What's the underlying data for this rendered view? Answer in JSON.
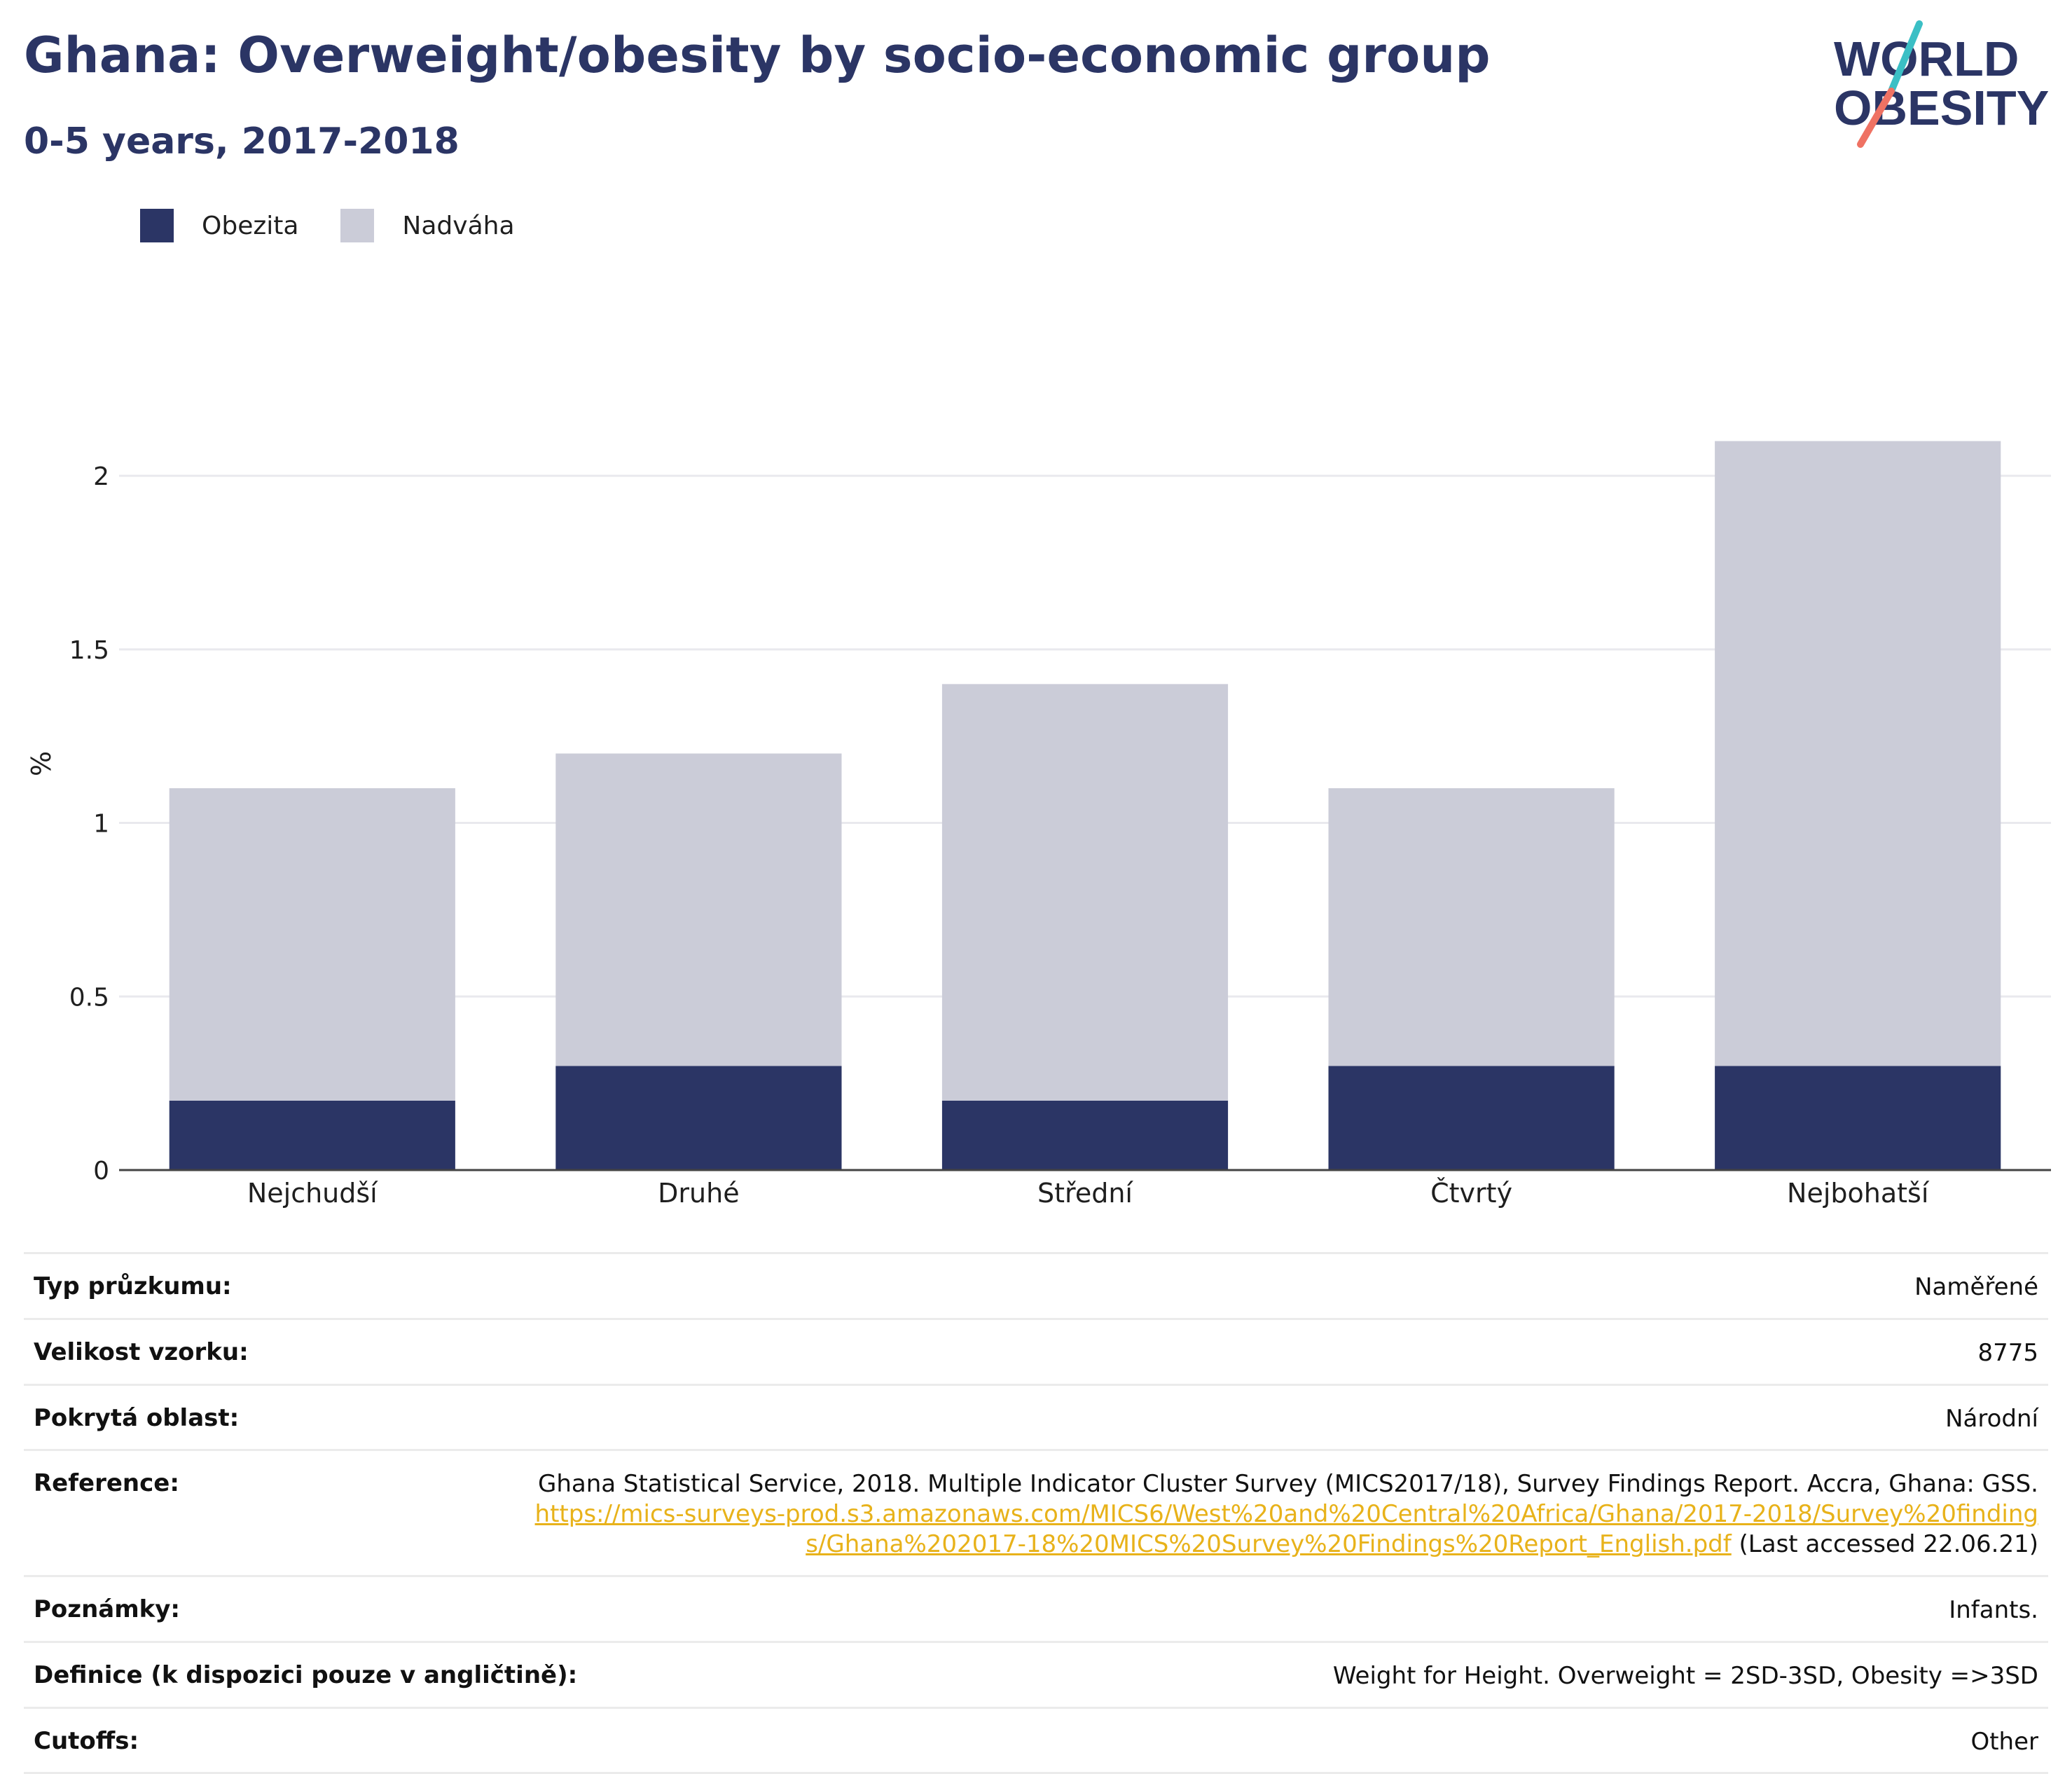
{
  "title": "Ghana: Overweight/obesity by socio-economic group",
  "subtitle": "0-5 years, 2017-2018",
  "logo": {
    "line1": "WORLD",
    "line2": "OBESITY"
  },
  "colors": {
    "obesity": "#2b3565",
    "overweight": "#cbccd8",
    "title": "#2b3565",
    "link": "#e8b21a",
    "logo_teal": "#3bbfc5",
    "logo_coral": "#ef7263"
  },
  "legend": {
    "obesity": "Obezita",
    "overweight": "Nadváha"
  },
  "chart_data": {
    "type": "bar",
    "stacked": true,
    "categories": [
      "Nejchudší",
      "Druhé",
      "Střední",
      "Čtvrtý",
      "Nejbohatší"
    ],
    "series": [
      {
        "name": "Obezita",
        "values": [
          0.2,
          0.3,
          0.2,
          0.3,
          0.3
        ]
      },
      {
        "name": "Nadváha",
        "values": [
          0.9,
          0.9,
          1.2,
          0.8,
          1.8
        ]
      }
    ],
    "xlabel": "",
    "ylabel": "%",
    "ylim": [
      0,
      2.2
    ],
    "yticks": [
      0,
      0.5,
      1,
      1.5,
      2
    ],
    "ytick_labels": [
      "0",
      "0.5",
      "1",
      "1.5",
      "2"
    ],
    "grid": true,
    "legend_position": "top-left"
  },
  "meta": {
    "survey_type": {
      "label": "Typ průzkumu:",
      "value": "Naměřené"
    },
    "sample_size": {
      "label": "Velikost vzorku:",
      "value": "8775"
    },
    "area": {
      "label": "Pokrytá oblast:",
      "value": "Národní"
    },
    "reference": {
      "label": "Reference:",
      "text": "Ghana Statistical Service, 2018. Multiple Indicator Cluster Survey (MICS2017/18), Survey Findings Report. Accra, Ghana: GSS.",
      "link": "https://mics-surveys-prod.s3.amazonaws.com/MICS6/West%20and%20Central%20Africa/Ghana/2017-2018/Survey%20findings/Ghana%202017-18%20MICS%20Survey%20Findings%20Report_English.pdf",
      "accessed": "(Last accessed 22.06.21)"
    },
    "notes": {
      "label": "Poznámky:",
      "value": "Infants."
    },
    "definition": {
      "label": "Definice (k dispozici pouze v angličtině):",
      "value": "Weight for Height. Overweight = 2SD-3SD, Obesity =>3SD"
    },
    "cutoffs": {
      "label": "Cutoffs:",
      "value": "Other"
    }
  }
}
